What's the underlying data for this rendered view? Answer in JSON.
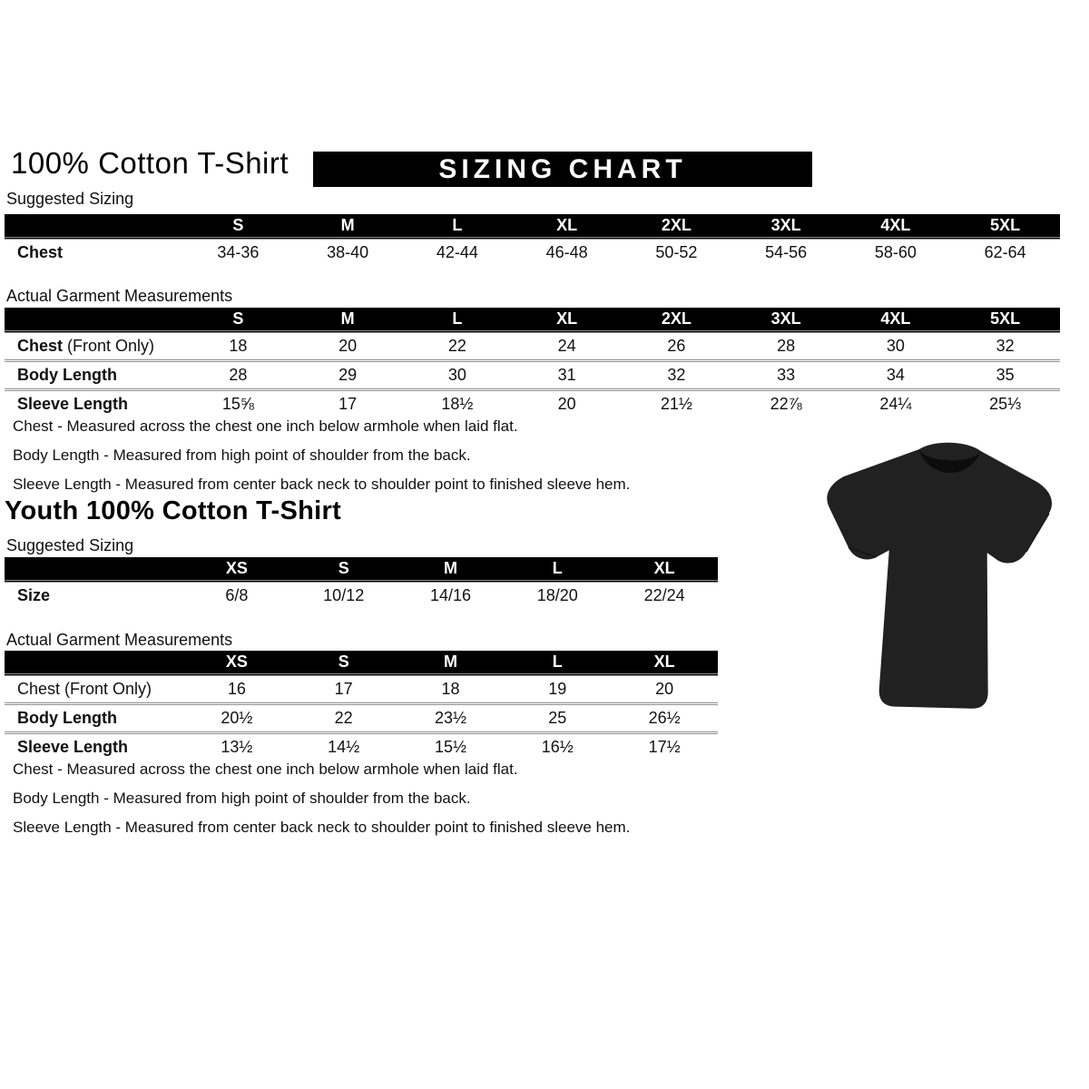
{
  "banner": "SIZING CHART",
  "adult": {
    "title": "100% Cotton T-Shirt",
    "suggested": {
      "heading": "Suggested Sizing",
      "columns": [
        "S",
        "M",
        "L",
        "XL",
        "2XL",
        "3XL",
        "4XL",
        "5XL"
      ],
      "rows": [
        {
          "label": "Chest",
          "bold": true,
          "values": [
            "34-36",
            "38-40",
            "42-44",
            "46-48",
            "50-52",
            "54-56",
            "58-60",
            "62-64"
          ]
        }
      ]
    },
    "actual": {
      "heading": "Actual Garment Measurements",
      "columns": [
        "S",
        "M",
        "L",
        "XL",
        "2XL",
        "3XL",
        "4XL",
        "5XL"
      ],
      "rows": [
        {
          "label": "Chest",
          "suffix": " (Front Only)",
          "bold": true,
          "values": [
            "18",
            "20",
            "22",
            "24",
            "26",
            "28",
            "30",
            "32"
          ]
        },
        {
          "label": "Body Length",
          "bold": true,
          "values": [
            "28",
            "29",
            "30",
            "31",
            "32",
            "33",
            "34",
            "35"
          ]
        },
        {
          "label": "Sleeve Length",
          "bold": true,
          "values": [
            "15⅝",
            "17",
            "18½",
            "20",
            "21½",
            "22⅞",
            "24¼",
            "25⅓"
          ]
        }
      ]
    }
  },
  "youth": {
    "title": "Youth 100% Cotton T-Shirt",
    "suggested": {
      "heading": "Suggested Sizing",
      "columns": [
        "XS",
        "S",
        "M",
        "L",
        "XL"
      ],
      "rows": [
        {
          "label": "Size",
          "bold": true,
          "values": [
            "6/8",
            "10/12",
            "14/16",
            "18/20",
            "22/24"
          ]
        }
      ]
    },
    "actual": {
      "heading": "Actual Garment Measurements",
      "columns": [
        "XS",
        "S",
        "M",
        "L",
        "XL"
      ],
      "rows": [
        {
          "label": "Chest (Front Only)",
          "bold": false,
          "values": [
            "16",
            "17",
            "18",
            "19",
            "20"
          ]
        },
        {
          "label": "Body Length",
          "bold": true,
          "values": [
            "20½",
            "22",
            "23½",
            "25",
            "26½"
          ]
        },
        {
          "label": "Sleeve Length",
          "bold": true,
          "values": [
            "13½",
            "14½",
            "15½",
            "16½",
            "17½"
          ]
        }
      ]
    }
  },
  "notes": [
    "Chest - Measured across the chest one inch below armhole when laid flat.",
    "Body Length - Measured from high point of shoulder from the back.",
    "Sleeve Length - Measured from center back neck to shoulder point to finished sleeve hem."
  ],
  "tshirt": {
    "description": "black short-sleeve crew-neck t-shirt",
    "body_color": "#212121",
    "collar_color": "#0c0c0c"
  }
}
